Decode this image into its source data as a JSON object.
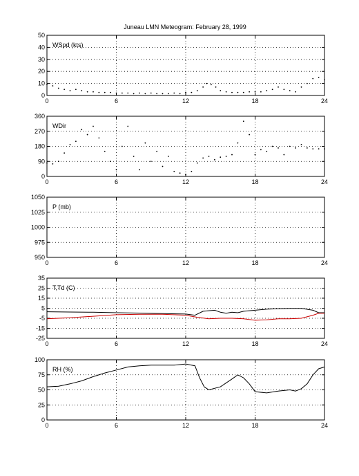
{
  "figure": {
    "title": "Juneau LMN Meteogram:  February 28, 1999"
  },
  "chart_data": [
    {
      "type": "scatter",
      "label": "WSpd (kts)",
      "xlim": [
        0,
        24
      ],
      "ylim": [
        0,
        50
      ],
      "xticks": [
        0,
        6,
        12,
        18,
        24
      ],
      "yticks": [
        0,
        10,
        20,
        30,
        40,
        50
      ],
      "grid": true,
      "series": [
        {
          "color": "#000000",
          "style": "dots",
          "points": [
            [
              0,
              9
            ],
            [
              0.5,
              8
            ],
            [
              1,
              6
            ],
            [
              1.5,
              5
            ],
            [
              2,
              4
            ],
            [
              2.5,
              5
            ],
            [
              3,
              4
            ],
            [
              3.5,
              3
            ],
            [
              4,
              3
            ],
            [
              4.5,
              2.5
            ],
            [
              5,
              2.5
            ],
            [
              5.5,
              2.5
            ],
            [
              6,
              2
            ],
            [
              6.5,
              2
            ],
            [
              7,
              2
            ],
            [
              7.5,
              1.5
            ],
            [
              8,
              2
            ],
            [
              8.5,
              1.5
            ],
            [
              9,
              2
            ],
            [
              9.5,
              1.5
            ],
            [
              10,
              1.5
            ],
            [
              10.5,
              1.5
            ],
            [
              11,
              2
            ],
            [
              11.5,
              1.5
            ],
            [
              12,
              2.5
            ],
            [
              12.5,
              2.5
            ],
            [
              13,
              4
            ],
            [
              13.5,
              7
            ],
            [
              13.8,
              10
            ],
            [
              14.2,
              9
            ],
            [
              14.6,
              7
            ],
            [
              15,
              4
            ],
            [
              15.5,
              3
            ],
            [
              16,
              2.5
            ],
            [
              16.5,
              2.5
            ],
            [
              17,
              2.5
            ],
            [
              17.5,
              3
            ],
            [
              18,
              3
            ],
            [
              18.5,
              3
            ],
            [
              19,
              4
            ],
            [
              19.5,
              5
            ],
            [
              20,
              7
            ],
            [
              20.5,
              5
            ],
            [
              21,
              4
            ],
            [
              21.5,
              3
            ],
            [
              22,
              7
            ],
            [
              22.5,
              10
            ],
            [
              23,
              14
            ],
            [
              23.5,
              15
            ],
            [
              24,
              13
            ]
          ]
        }
      ]
    },
    {
      "type": "scatter",
      "label": "WDir",
      "xlim": [
        0,
        24
      ],
      "ylim": [
        0,
        360
      ],
      "xticks": [
        0,
        6,
        12,
        18,
        24
      ],
      "yticks": [
        0,
        90,
        180,
        270,
        360
      ],
      "grid": true,
      "series": [
        {
          "color": "#000000",
          "style": "dots",
          "points": [
            [
              0,
              80
            ],
            [
              0.5,
              75
            ],
            [
              1,
              90
            ],
            [
              1.5,
              140
            ],
            [
              2,
              190
            ],
            [
              2.5,
              210
            ],
            [
              3,
              280
            ],
            [
              3.5,
              250
            ],
            [
              4,
              300
            ],
            [
              4.5,
              230
            ],
            [
              5,
              150
            ],
            [
              5.5,
              90
            ],
            [
              6,
              40
            ],
            [
              6.5,
              180
            ],
            [
              7,
              300
            ],
            [
              7.5,
              120
            ],
            [
              8,
              40
            ],
            [
              8.5,
              200
            ],
            [
              9,
              90
            ],
            [
              9.5,
              150
            ],
            [
              10,
              60
            ],
            [
              10.5,
              120
            ],
            [
              11,
              30
            ],
            [
              11.5,
              20
            ],
            [
              12,
              10
            ],
            [
              12.5,
              30
            ],
            [
              13,
              80
            ],
            [
              13.5,
              110
            ],
            [
              14,
              120
            ],
            [
              14.5,
              100
            ],
            [
              15,
              115
            ],
            [
              15.5,
              120
            ],
            [
              16,
              130
            ],
            [
              16.5,
              200
            ],
            [
              17,
              330
            ],
            [
              17.5,
              250
            ],
            [
              18,
              130
            ],
            [
              18.5,
              160
            ],
            [
              19,
              150
            ],
            [
              19.5,
              180
            ],
            [
              20,
              170
            ],
            [
              20.5,
              130
            ],
            [
              21,
              180
            ],
            [
              21.5,
              170
            ],
            [
              22,
              190
            ],
            [
              22.5,
              170
            ],
            [
              23,
              165
            ],
            [
              23.5,
              165
            ],
            [
              24,
              165
            ]
          ]
        }
      ]
    },
    {
      "type": "line",
      "label": "P (mb)",
      "xlim": [
        0,
        24
      ],
      "ylim": [
        950,
        1050
      ],
      "xticks": [
        0,
        6,
        12,
        18,
        24
      ],
      "yticks": [
        950,
        975,
        1000,
        1025,
        1050
      ],
      "grid": true,
      "series": []
    },
    {
      "type": "line",
      "label": "T,Td (C)",
      "xlim": [
        0,
        24
      ],
      "ylim": [
        -25,
        35
      ],
      "xticks": [
        0,
        6,
        12,
        18,
        24
      ],
      "yticks": [
        -25,
        -15,
        -5,
        5,
        15,
        25,
        35
      ],
      "grid": true,
      "series": [
        {
          "color": "#000000",
          "style": "line",
          "points": [
            [
              0,
              1.5
            ],
            [
              2,
              1.2
            ],
            [
              4,
              1
            ],
            [
              6,
              0.5
            ],
            [
              8,
              0.2
            ],
            [
              10,
              -0.3
            ],
            [
              12,
              -0.8
            ],
            [
              12.8,
              -2
            ],
            [
              13.5,
              2
            ],
            [
              14.5,
              3
            ],
            [
              15,
              1
            ],
            [
              15.5,
              0
            ],
            [
              16,
              1
            ],
            [
              16.5,
              0.5
            ],
            [
              17,
              2
            ],
            [
              18,
              3
            ],
            [
              19,
              4
            ],
            [
              20,
              4.5
            ],
            [
              21,
              4.8
            ],
            [
              22,
              4.8
            ],
            [
              23,
              3
            ],
            [
              23.5,
              0.5
            ],
            [
              24,
              0.5
            ]
          ]
        },
        {
          "color": "#cc0000",
          "style": "line",
          "points": [
            [
              0,
              -5.5
            ],
            [
              2,
              -4.5
            ],
            [
              4,
              -3
            ],
            [
              6,
              -1.5
            ],
            [
              8,
              -1
            ],
            [
              10,
              -1
            ],
            [
              12,
              -2
            ],
            [
              13,
              -4
            ],
            [
              14,
              -5.5
            ],
            [
              15,
              -5
            ],
            [
              16,
              -5
            ],
            [
              17,
              -5.5
            ],
            [
              18,
              -7
            ],
            [
              19,
              -6.5
            ],
            [
              20,
              -5.5
            ],
            [
              21,
              -5.5
            ],
            [
              22,
              -5
            ],
            [
              23,
              -2
            ],
            [
              23.5,
              0
            ],
            [
              24,
              0
            ]
          ]
        }
      ]
    },
    {
      "type": "line",
      "label": "RH (%)",
      "xlim": [
        0,
        24
      ],
      "ylim": [
        0,
        100
      ],
      "xticks": [
        0,
        6,
        12,
        18,
        24
      ],
      "yticks": [
        0,
        25,
        50,
        75,
        100
      ],
      "grid": true,
      "series": [
        {
          "color": "#000000",
          "style": "line",
          "points": [
            [
              0,
              55
            ],
            [
              1,
              56
            ],
            [
              2,
              60
            ],
            [
              3,
              65
            ],
            [
              4,
              72
            ],
            [
              5,
              78
            ],
            [
              6,
              83
            ],
            [
              7,
              88
            ],
            [
              8,
              90
            ],
            [
              9,
              91
            ],
            [
              10,
              91
            ],
            [
              11,
              91
            ],
            [
              12,
              93
            ],
            [
              12.8,
              90
            ],
            [
              13.2,
              70
            ],
            [
              13.6,
              55
            ],
            [
              14,
              50
            ],
            [
              15,
              55
            ],
            [
              16,
              68
            ],
            [
              16.5,
              75
            ],
            [
              17,
              70
            ],
            [
              17.5,
              60
            ],
            [
              18,
              47
            ],
            [
              19,
              45
            ],
            [
              20,
              48
            ],
            [
              21,
              50
            ],
            [
              21.5,
              48
            ],
            [
              22,
              52
            ],
            [
              22.5,
              60
            ],
            [
              23,
              75
            ],
            [
              23.5,
              85
            ],
            [
              24,
              88
            ]
          ]
        }
      ]
    }
  ]
}
